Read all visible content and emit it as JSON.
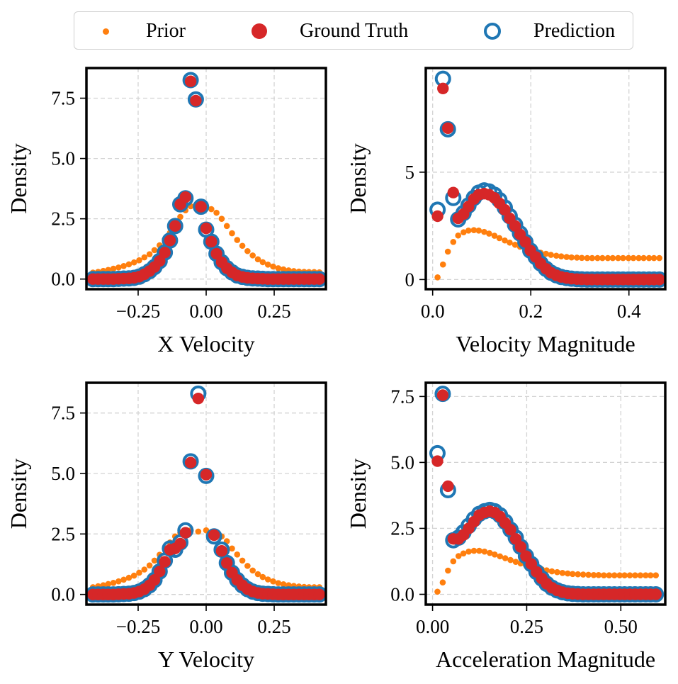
{
  "legend": {
    "prior_label": "Prior",
    "gt_label": "Ground Truth",
    "pred_label": "Prediction"
  },
  "colors": {
    "prior": "#ff7f0e",
    "ground_truth": "#d62728",
    "prediction": "#1f77b4",
    "grid": "#d3d3d3"
  },
  "chart_data": [
    {
      "type": "scatter",
      "id": "xvel",
      "title": "",
      "xlabel": "X Velocity",
      "ylabel": "Density",
      "xlim": [
        -0.44,
        0.44
      ],
      "ylim": [
        -0.42,
        8.75
      ],
      "xticks": [
        -0.25,
        0.0,
        0.25
      ],
      "xtick_labels": [
        "−0.25",
        "0.00",
        "0.25"
      ],
      "yticks": [
        0.0,
        2.5,
        5.0,
        7.5
      ],
      "ytick_labels": [
        "0.0",
        "2.5",
        "5.0",
        "7.5"
      ],
      "grid": true,
      "x": [
        -0.416,
        -0.397,
        -0.378,
        -0.36,
        -0.341,
        -0.322,
        -0.303,
        -0.284,
        -0.265,
        -0.246,
        -0.227,
        -0.208,
        -0.19,
        -0.171,
        -0.152,
        -0.133,
        -0.114,
        -0.095,
        -0.076,
        -0.057,
        -0.038,
        -0.019,
        0.0,
        0.019,
        0.038,
        0.057,
        0.076,
        0.095,
        0.114,
        0.133,
        0.152,
        0.171,
        0.19,
        0.208,
        0.227,
        0.246,
        0.265,
        0.284,
        0.303,
        0.322,
        0.341,
        0.36,
        0.378,
        0.397,
        0.416
      ],
      "series": [
        {
          "name": "Prior",
          "values": [
            0.27,
            0.3,
            0.34,
            0.38,
            0.43,
            0.48,
            0.54,
            0.61,
            0.69,
            0.78,
            0.9,
            1.03,
            1.2,
            1.4,
            1.64,
            1.92,
            2.25,
            2.58,
            2.85,
            3.02,
            3.07,
            3.05,
            3.0,
            2.9,
            2.75,
            2.5,
            2.2,
            1.9,
            1.62,
            1.38,
            1.16,
            0.98,
            0.82,
            0.7,
            0.6,
            0.52,
            0.45,
            0.4,
            0.36,
            0.33,
            0.31,
            0.3,
            0.29,
            0.29,
            0.28
          ]
        },
        {
          "name": "Ground Truth",
          "values": [
            0.0,
            0.0,
            0.0,
            0.0,
            0.0,
            0.01,
            0.02,
            0.03,
            0.05,
            0.1,
            0.2,
            0.33,
            0.5,
            0.75,
            1.1,
            1.6,
            2.2,
            3.1,
            3.4,
            8.2,
            7.4,
            3.0,
            2.1,
            1.55,
            1.05,
            0.7,
            0.45,
            0.28,
            0.15,
            0.09,
            0.05,
            0.03,
            0.02,
            0.01,
            0.0,
            0.0,
            0.0,
            0.0,
            0.0,
            0.0,
            0.0,
            0.0,
            0.0,
            0.0,
            0.0
          ]
        },
        {
          "name": "Prediction",
          "values": [
            0.0,
            0.0,
            0.0,
            0.0,
            0.0,
            0.01,
            0.02,
            0.03,
            0.05,
            0.1,
            0.2,
            0.33,
            0.5,
            0.75,
            1.1,
            1.6,
            2.2,
            3.1,
            3.35,
            8.25,
            7.45,
            3.0,
            2.05,
            1.55,
            1.05,
            0.7,
            0.45,
            0.28,
            0.15,
            0.09,
            0.05,
            0.03,
            0.02,
            0.01,
            0.0,
            0.0,
            0.0,
            0.0,
            0.0,
            0.0,
            0.0,
            0.0,
            0.0,
            0.0,
            0.0
          ]
        }
      ]
    },
    {
      "type": "scatter",
      "id": "velmag",
      "title": "",
      "xlabel": "Velocity Magnitude",
      "ylabel": "Density",
      "xlim": [
        -0.014,
        0.474
      ],
      "ylim": [
        -0.45,
        9.85
      ],
      "xticks": [
        0.0,
        0.2,
        0.4
      ],
      "xtick_labels": [
        "0.0",
        "0.2",
        "0.4"
      ],
      "yticks": [
        0,
        5
      ],
      "ytick_labels": [
        "0",
        "5"
      ],
      "grid": true,
      "x": [
        0.01,
        0.021,
        0.031,
        0.042,
        0.052,
        0.063,
        0.073,
        0.084,
        0.094,
        0.105,
        0.115,
        0.126,
        0.136,
        0.147,
        0.157,
        0.168,
        0.178,
        0.189,
        0.199,
        0.21,
        0.22,
        0.231,
        0.241,
        0.252,
        0.262,
        0.273,
        0.283,
        0.294,
        0.304,
        0.315,
        0.325,
        0.336,
        0.346,
        0.357,
        0.367,
        0.378,
        0.388,
        0.399,
        0.409,
        0.42,
        0.43,
        0.441,
        0.451,
        0.462
      ],
      "series": [
        {
          "name": "Prior",
          "values": [
            0.1,
            0.7,
            1.3,
            1.75,
            2.05,
            2.2,
            2.28,
            2.3,
            2.28,
            2.22,
            2.14,
            2.04,
            1.93,
            1.82,
            1.72,
            1.62,
            1.53,
            1.45,
            1.38,
            1.31,
            1.25,
            1.2,
            1.15,
            1.11,
            1.08,
            1.05,
            1.03,
            1.02,
            1.01,
            1.0,
            1.0,
            1.0,
            1.0,
            1.0,
            1.0,
            1.0,
            1.0,
            1.0,
            1.0,
            1.0,
            1.0,
            1.0,
            1.0,
            1.0
          ]
        },
        {
          "name": "Ground Truth",
          "values": [
            2.95,
            8.9,
            7.05,
            4.05,
            2.85,
            3.05,
            3.4,
            3.75,
            3.95,
            4.0,
            3.95,
            3.8,
            3.55,
            3.25,
            2.85,
            2.5,
            2.1,
            1.75,
            1.35,
            1.05,
            0.75,
            0.5,
            0.32,
            0.2,
            0.12,
            0.07,
            0.04,
            0.02,
            0.01,
            0.0,
            0.0,
            0.0,
            0.0,
            0.0,
            0.0,
            0.0,
            0.0,
            0.0,
            0.0,
            0.0,
            0.0,
            0.0,
            0.0,
            0.0
          ]
        },
        {
          "name": "Prediction",
          "values": [
            3.25,
            9.35,
            7.0,
            3.8,
            2.8,
            3.1,
            3.45,
            3.8,
            4.05,
            4.15,
            4.1,
            3.95,
            3.7,
            3.35,
            2.95,
            2.55,
            2.15,
            1.75,
            1.35,
            1.05,
            0.75,
            0.5,
            0.32,
            0.2,
            0.12,
            0.07,
            0.04,
            0.02,
            0.01,
            0.0,
            0.0,
            0.0,
            0.0,
            0.0,
            0.0,
            0.0,
            0.0,
            0.0,
            0.0,
            0.0,
            0.0,
            0.0,
            0.0,
            0.0
          ]
        }
      ]
    },
    {
      "type": "scatter",
      "id": "yvel",
      "title": "",
      "xlabel": "Y Velocity",
      "ylabel": "Density",
      "xlim": [
        -0.44,
        0.44
      ],
      "ylim": [
        -0.42,
        8.75
      ],
      "xticks": [
        -0.25,
        0.0,
        0.25
      ],
      "xtick_labels": [
        "−0.25",
        "0.00",
        "0.25"
      ],
      "yticks": [
        0.0,
        2.5,
        5.0,
        7.5
      ],
      "ytick_labels": [
        "0.0",
        "2.5",
        "5.0",
        "7.5"
      ],
      "grid": true,
      "x": [
        -0.416,
        -0.397,
        -0.378,
        -0.36,
        -0.341,
        -0.322,
        -0.303,
        -0.284,
        -0.265,
        -0.246,
        -0.227,
        -0.208,
        -0.19,
        -0.171,
        -0.152,
        -0.133,
        -0.114,
        -0.095,
        -0.076,
        -0.057,
        -0.029,
        0.0,
        0.029,
        0.057,
        0.076,
        0.095,
        0.114,
        0.133,
        0.152,
        0.171,
        0.19,
        0.208,
        0.227,
        0.246,
        0.265,
        0.284,
        0.303,
        0.322,
        0.341,
        0.36,
        0.378,
        0.397,
        0.416
      ],
      "series": [
        {
          "name": "Prior",
          "values": [
            0.3,
            0.34,
            0.38,
            0.43,
            0.48,
            0.54,
            0.61,
            0.69,
            0.78,
            0.9,
            1.03,
            1.2,
            1.4,
            1.64,
            1.9,
            2.15,
            2.4,
            2.55,
            2.62,
            2.65,
            2.6,
            2.65,
            2.55,
            2.4,
            2.2,
            1.9,
            1.65,
            1.4,
            1.18,
            0.99,
            0.84,
            0.72,
            0.62,
            0.54,
            0.47,
            0.42,
            0.38,
            0.35,
            0.33,
            0.31,
            0.3,
            0.3,
            0.3
          ]
        },
        {
          "name": "Ground Truth",
          "values": [
            0.0,
            0.0,
            0.0,
            0.0,
            0.0,
            0.01,
            0.02,
            0.03,
            0.06,
            0.12,
            0.22,
            0.38,
            0.6,
            0.95,
            1.35,
            1.85,
            1.9,
            2.1,
            2.55,
            5.45,
            8.1,
            4.95,
            2.45,
            1.8,
            1.3,
            0.9,
            0.6,
            0.38,
            0.22,
            0.12,
            0.06,
            0.03,
            0.02,
            0.01,
            0.0,
            0.0,
            0.0,
            0.0,
            0.0,
            0.0,
            0.0,
            0.0,
            0.0
          ]
        },
        {
          "name": "Prediction",
          "values": [
            0.0,
            0.0,
            0.0,
            0.0,
            0.0,
            0.01,
            0.02,
            0.03,
            0.06,
            0.12,
            0.22,
            0.38,
            0.6,
            0.95,
            1.4,
            1.9,
            1.85,
            2.15,
            2.65,
            5.5,
            8.3,
            4.9,
            2.4,
            1.85,
            1.3,
            0.9,
            0.6,
            0.38,
            0.22,
            0.12,
            0.06,
            0.03,
            0.02,
            0.01,
            0.0,
            0.0,
            0.0,
            0.0,
            0.0,
            0.0,
            0.0,
            0.0,
            0.0
          ]
        }
      ]
    },
    {
      "type": "scatter",
      "id": "accmag",
      "title": "",
      "xlabel": "Acceleration Magnitude",
      "ylabel": "Density",
      "xlim": [
        -0.018,
        0.618
      ],
      "ylim": [
        -0.39,
        8.02
      ],
      "xticks": [
        0.0,
        0.25,
        0.5
      ],
      "xtick_labels": [
        "0.00",
        "0.25",
        "0.50"
      ],
      "yticks": [
        0.0,
        2.5,
        5.0,
        7.5
      ],
      "ytick_labels": [
        "0.0",
        "2.5",
        "5.0",
        "7.5"
      ],
      "grid": true,
      "x": [
        0.013,
        0.027,
        0.041,
        0.055,
        0.069,
        0.082,
        0.096,
        0.11,
        0.124,
        0.138,
        0.152,
        0.165,
        0.179,
        0.193,
        0.207,
        0.221,
        0.234,
        0.248,
        0.262,
        0.276,
        0.29,
        0.303,
        0.317,
        0.331,
        0.345,
        0.359,
        0.372,
        0.386,
        0.4,
        0.414,
        0.428,
        0.441,
        0.455,
        0.469,
        0.483,
        0.497,
        0.51,
        0.524,
        0.538,
        0.552,
        0.566,
        0.579,
        0.593
      ],
      "series": [
        {
          "name": "Prior",
          "values": [
            0.1,
            0.45,
            0.9,
            1.25,
            1.45,
            1.55,
            1.62,
            1.65,
            1.65,
            1.62,
            1.57,
            1.51,
            1.44,
            1.37,
            1.3,
            1.23,
            1.17,
            1.11,
            1.05,
            1.0,
            0.95,
            0.91,
            0.87,
            0.84,
            0.81,
            0.79,
            0.77,
            0.76,
            0.75,
            0.74,
            0.73,
            0.73,
            0.72,
            0.72,
            0.72,
            0.72,
            0.72,
            0.72,
            0.72,
            0.72,
            0.72,
            0.72,
            0.72
          ]
        },
        {
          "name": "Ground Truth",
          "values": [
            5.05,
            7.55,
            4.1,
            2.1,
            2.1,
            2.25,
            2.5,
            2.75,
            3.0,
            3.1,
            3.15,
            3.1,
            2.95,
            2.7,
            2.45,
            2.1,
            1.8,
            1.45,
            1.15,
            0.85,
            0.6,
            0.4,
            0.25,
            0.15,
            0.08,
            0.04,
            0.02,
            0.01,
            0.0,
            0.0,
            0.0,
            0.0,
            0.0,
            0.0,
            0.0,
            0.0,
            0.0,
            0.0,
            0.0,
            0.0,
            0.0,
            0.0,
            0.0
          ]
        },
        {
          "name": "Prediction",
          "values": [
            5.35,
            7.6,
            3.95,
            2.05,
            2.15,
            2.35,
            2.6,
            2.85,
            3.05,
            3.15,
            3.2,
            3.15,
            3.0,
            2.75,
            2.45,
            2.15,
            1.8,
            1.45,
            1.15,
            0.85,
            0.6,
            0.4,
            0.25,
            0.15,
            0.08,
            0.04,
            0.02,
            0.01,
            0.0,
            0.0,
            0.0,
            0.0,
            0.0,
            0.0,
            0.0,
            0.0,
            0.0,
            0.0,
            0.0,
            0.0,
            0.0,
            0.0,
            0.0
          ]
        }
      ]
    }
  ]
}
